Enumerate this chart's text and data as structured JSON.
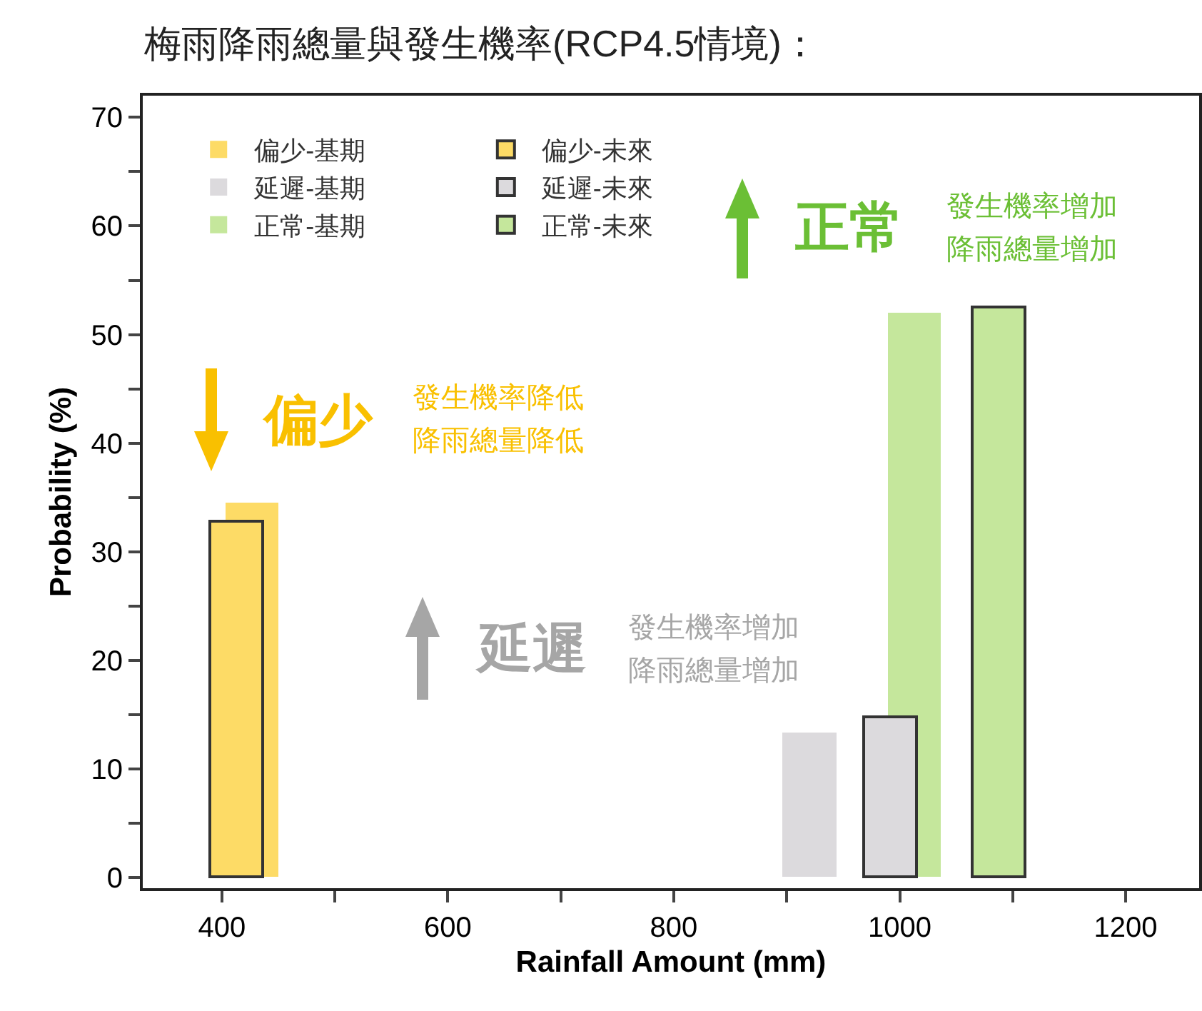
{
  "chart_data": {
    "type": "bar",
    "title": "梅雨降雨總量與發生機率(RCP4.5情境)：",
    "xlabel": "Rainfall Amount (mm)",
    "ylabel": "Probability (%)",
    "series": [
      {
        "name": "偏少-基期",
        "color": "#fddb66",
        "x": [
          427
        ],
        "values": [
          34.5
        ]
      },
      {
        "name": "偏少-未來",
        "color": "#fddb66",
        "x": [
          413
        ],
        "values": [
          32.8
        ]
      },
      {
        "name": "延遲-基期",
        "color": "#dcdadd",
        "x": [
          920
        ],
        "values": [
          13.4
        ]
      },
      {
        "name": "延遲-未來",
        "color": "#dcdadd",
        "x": [
          991
        ],
        "values": [
          14.8
        ]
      },
      {
        "name": "正常-基期",
        "color": "#c5e79c",
        "x": [
          1013
        ],
        "values": [
          52.0
        ]
      },
      {
        "name": "正常-未來",
        "color": "#c5e79c",
        "x": [
          1087
        ],
        "values": [
          52.5
        ]
      }
    ],
    "xlim": [
      330,
      1265
    ],
    "ylim": [
      -1,
      72
    ],
    "xticks": [
      400,
      {
        "value": 500,
        "label": null
      },
      600,
      {
        "value": 700,
        "label": null
      },
      800,
      {
        "value": 900,
        "label": null
      },
      1000,
      {
        "value": 1100,
        "label": null
      },
      1200
    ],
    "yticks": [
      0,
      {
        "value": 5,
        "label": null
      },
      10,
      {
        "value": 15,
        "label": null
      },
      20,
      {
        "value": 25,
        "label": null
      },
      30,
      {
        "value": 35,
        "label": null
      },
      40,
      {
        "value": 45,
        "label": null
      },
      50,
      {
        "value": 55,
        "label": null
      },
      60,
      {
        "value": 65,
        "label": null
      },
      70
    ],
    "annotations": [
      "偏少",
      "發生機率降低",
      "降雨總量降低",
      "延遲",
      "發生機率增加",
      "降雨總量增加",
      "正常",
      "發生機率增加",
      "降雨總量增加"
    ],
    "legend": "top left",
    "grid": false
  }
}
